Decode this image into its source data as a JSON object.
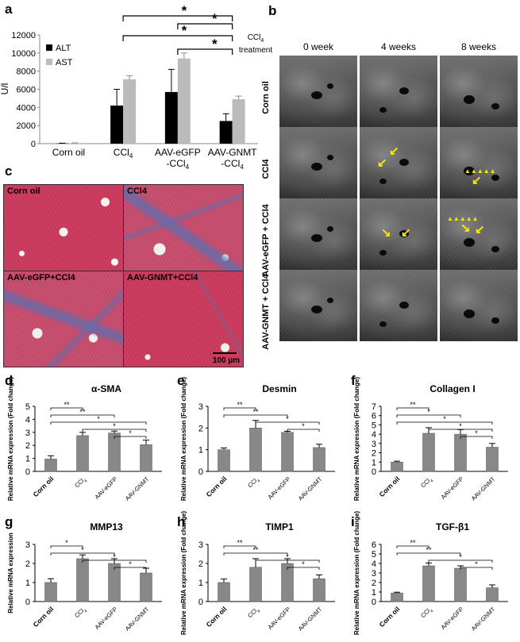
{
  "panel_letters": {
    "a": "a",
    "b": "b",
    "c": "c",
    "d": "d",
    "e": "e",
    "f": "f",
    "g": "g",
    "h": "h",
    "i": "i"
  },
  "panel_b": {
    "treatment_label_1": "CCl",
    "treatment_label_sub": "4",
    "treatment_label_2": "treatment",
    "columns": [
      "0 week",
      "4 weeks",
      "8 weeks"
    ],
    "rows": [
      "Corn oil",
      "CCl4",
      "AAV-eGFP + CCl4",
      "AAV-GNMT + CCl4"
    ]
  },
  "panel_c": {
    "labels": [
      "Corn oil",
      "CCl4",
      "AAV-eGFP+CCl4",
      "AAV-GNMT+CCl4"
    ],
    "scale_bar": "100 µm",
    "colors": {
      "tissue": "#c8385a",
      "fibrosis": "#5a6fb0"
    }
  },
  "chart_data": [
    {
      "panel": "a",
      "type": "bar",
      "categories": [
        "Corn oil",
        "CCl4",
        "AAV-eGFP -CCl4",
        "AAV-GNMT -CCl4"
      ],
      "category_lines": [
        [
          "Corn oil"
        ],
        [
          "CCl4"
        ],
        [
          "AAV-eGFP",
          "-CCl4"
        ],
        [
          "AAV-GNMT",
          "-CCl4"
        ]
      ],
      "ylabel": "U/l",
      "ylim": [
        0,
        12000
      ],
      "yticks": [
        0,
        2000,
        4000,
        6000,
        8000,
        10000,
        12000
      ],
      "series": [
        {
          "name": "ALT",
          "color": "#000000",
          "values": [
            30,
            4200,
            5700,
            2500
          ],
          "errors": [
            20,
            1800,
            2500,
            800
          ]
        },
        {
          "name": "AST",
          "color": "#bbbbbb",
          "values": [
            60,
            7100,
            9400,
            4900
          ],
          "errors": [
            30,
            400,
            600,
            350
          ]
        }
      ],
      "significance": [
        "*",
        "*",
        "*",
        "*"
      ],
      "legend": "top-left"
    },
    {
      "panel": "d",
      "type": "bar",
      "title": "α-SMA",
      "ylabel": "Relative mRNA expression (Fold change)",
      "categories": [
        "Corn oil",
        "CCl4",
        "AAV-eGFP",
        "AAV-GNMT"
      ],
      "values": [
        0.95,
        2.75,
        2.95,
        2.05
      ],
      "errors": [
        0.25,
        0.25,
        0.15,
        0.35
      ],
      "ylim": [
        0,
        5
      ],
      "yticks": [
        0,
        1,
        2,
        3,
        4,
        5
      ],
      "significance": [
        "**",
        "**",
        "*",
        "*",
        "*"
      ]
    },
    {
      "panel": "e",
      "type": "bar",
      "title": "Desmin",
      "ylabel": "Relative mRNA expression (Fold change)",
      "categories": [
        "Corn oil",
        "CCl4",
        "AAV-eGFP",
        "AAV-GNMT"
      ],
      "values": [
        1.0,
        2.0,
        1.8,
        1.1
      ],
      "errors": [
        0.08,
        0.35,
        0.05,
        0.15
      ],
      "ylim": [
        0,
        3
      ],
      "yticks": [
        0,
        1,
        2,
        3
      ],
      "significance": [
        "**",
        "**",
        "*",
        "*"
      ]
    },
    {
      "panel": "f",
      "type": "bar",
      "title": "Collagen I",
      "ylabel": "Relative mRNA expression (Fold change)",
      "categories": [
        "Corn oil",
        "CCl4",
        "AAV-eGFP",
        "AAV-GNMT"
      ],
      "values": [
        1.0,
        4.1,
        4.0,
        2.6
      ],
      "errors": [
        0.1,
        0.6,
        0.5,
        0.4
      ],
      "ylim": [
        0,
        7
      ],
      "yticks": [
        0,
        1,
        2,
        3,
        4,
        5,
        6,
        7
      ],
      "significance": [
        "**",
        "*",
        "*",
        "*",
        "*"
      ]
    },
    {
      "panel": "g",
      "type": "bar",
      "title": "MMP13",
      "ylabel": "Relative mRNA expression",
      "categories": [
        "Corn oil",
        "CCl4",
        "AAV-eGFP",
        "AAV-GNMT"
      ],
      "values": [
        1.0,
        2.25,
        2.0,
        1.5
      ],
      "errors": [
        0.2,
        0.2,
        0.25,
        0.25
      ],
      "ylim": [
        0,
        3
      ],
      "yticks": [
        0,
        1,
        2,
        3
      ],
      "significance": [
        "*",
        "*",
        "*",
        "*"
      ]
    },
    {
      "panel": "h",
      "type": "bar",
      "title": "TIMP1",
      "ylabel": "Relative mRNA expression (Fold change)",
      "categories": [
        "Corn oil",
        "CCl4",
        "AAV-eGFP",
        "AAV-GNMT"
      ],
      "values": [
        1.0,
        1.8,
        2.0,
        1.2
      ],
      "errors": [
        0.18,
        0.45,
        0.25,
        0.2
      ],
      "ylim": [
        0,
        3
      ],
      "yticks": [
        0,
        1,
        2,
        3
      ],
      "significance": [
        "**",
        "**",
        "*",
        "*"
      ]
    },
    {
      "panel": "i",
      "type": "bar",
      "title": "TGF-β1",
      "ylabel": "Relative mRNA expression (Fold change)",
      "categories": [
        "Corn oil",
        "CCl4",
        "AAV-eGFP",
        "AAV-GNMT"
      ],
      "values": [
        0.9,
        3.75,
        3.5,
        1.45
      ],
      "errors": [
        0.08,
        0.3,
        0.25,
        0.3
      ],
      "ylim": [
        0,
        6
      ],
      "yticks": [
        0,
        1,
        2,
        3,
        4,
        5,
        6
      ],
      "significance": [
        "**",
        "**",
        "*",
        "*"
      ]
    }
  ]
}
